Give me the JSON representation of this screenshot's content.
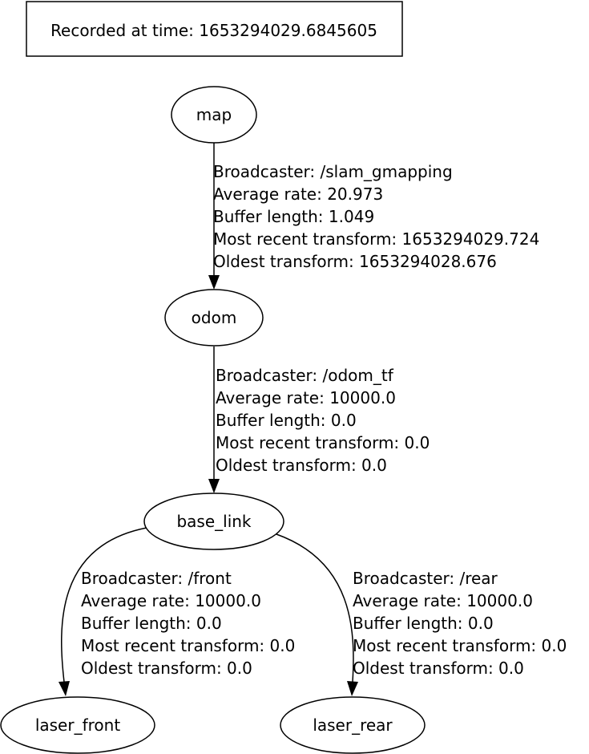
{
  "header": {
    "recorded_text": "Recorded at time: 1653294029.6845605"
  },
  "colors": {
    "stroke": "#000000",
    "background": "#ffffff"
  },
  "nodes": {
    "map": "map",
    "odom": "odom",
    "base_link": "base_link",
    "laser_front": "laser_front",
    "laser_rear": "laser_rear"
  },
  "edges": {
    "map_odom": {
      "broadcaster": "Broadcaster: /slam_gmapping",
      "average_rate": "Average rate: 20.973",
      "buffer_length": "Buffer length: 1.049",
      "most_recent": "Most recent transform: 1653294029.724",
      "oldest": "Oldest transform: 1653294028.676"
    },
    "odom_base_link": {
      "broadcaster": "Broadcaster: /odom_tf",
      "average_rate": "Average rate: 10000.0",
      "buffer_length": "Buffer length: 0.0",
      "most_recent": "Most recent transform: 0.0",
      "oldest": "Oldest transform: 0.0"
    },
    "base_link_laser_front": {
      "broadcaster": "Broadcaster: /front",
      "average_rate": "Average rate: 10000.0",
      "buffer_length": "Buffer length: 0.0",
      "most_recent": "Most recent transform: 0.0",
      "oldest": "Oldest transform: 0.0"
    },
    "base_link_laser_rear": {
      "broadcaster": "Broadcaster: /rear",
      "average_rate": "Average rate: 10000.0",
      "buffer_length": "Buffer length: 0.0",
      "most_recent": "Most recent transform: 0.0",
      "oldest": "Oldest transform: 0.0"
    }
  }
}
